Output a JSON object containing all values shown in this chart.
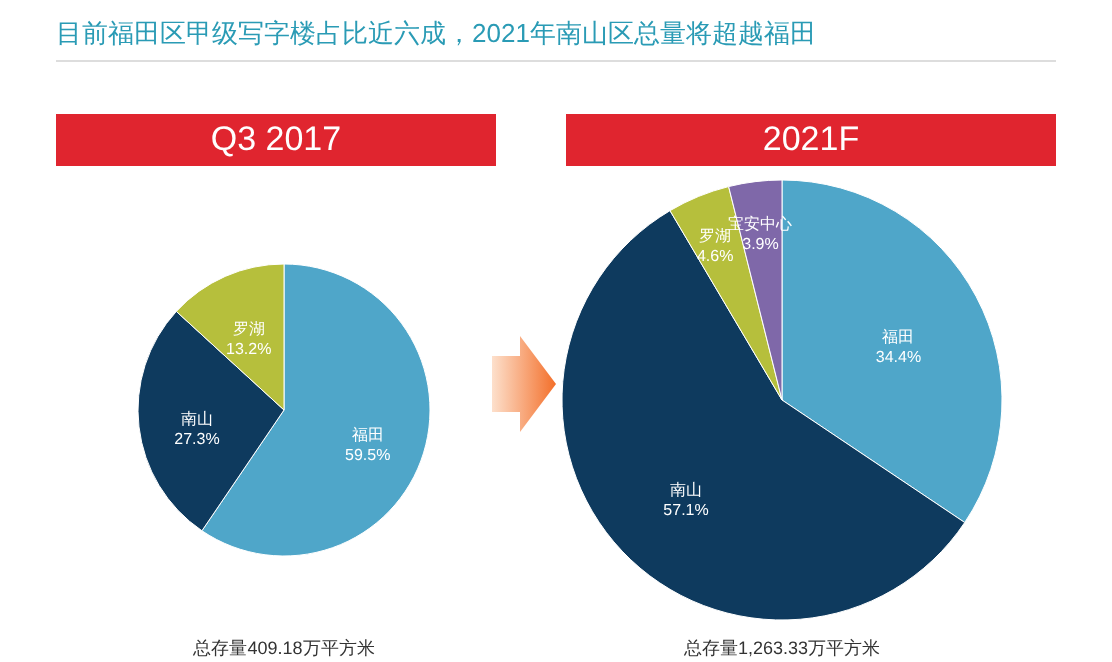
{
  "chart_data": [
    {
      "type": "pie",
      "title": "Q3 2017",
      "annotations": [
        "目前福田区甲级写字楼占比近六成，2021年南山区总量将超越福田",
        "总存量409.18万平方米"
      ],
      "categories": [
        "福田",
        "南山",
        "罗湖"
      ],
      "values": [
        59.5,
        27.3,
        13.2
      ],
      "value_labels": [
        "59.5%",
        "27.3%",
        "13.2%"
      ],
      "colors": [
        "#4fa6c9",
        "#0e3a5e",
        "#b6bf3c"
      ]
    },
    {
      "type": "pie",
      "title": "2021F",
      "annotations": [
        "总存量1,263.33万平方米"
      ],
      "categories": [
        "福田",
        "南山",
        "罗湖",
        "宝安中心"
      ],
      "values": [
        34.4,
        57.1,
        4.6,
        3.9
      ],
      "value_labels": [
        "34.4%",
        "57.1%",
        "4.6%",
        "3.9%"
      ],
      "colors": [
        "#4fa6c9",
        "#0e3a5e",
        "#b6bf3c",
        "#7f68a9"
      ]
    }
  ]
}
